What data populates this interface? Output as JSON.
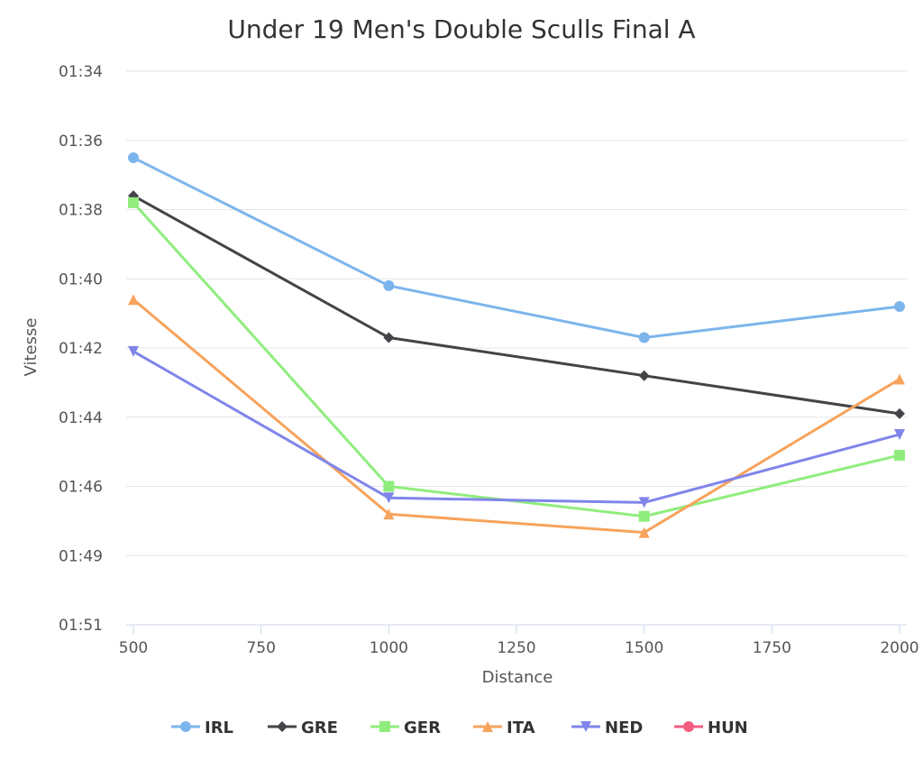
{
  "chart_data": {
    "type": "line",
    "title": "Under 19 Men's Double Sculls Final A",
    "xlabel": "Distance",
    "ylabel": "Vitesse",
    "x_ticks": [
      500,
      750,
      1000,
      1250,
      1500,
      1750,
      2000
    ],
    "xlim": [
      500,
      2000
    ],
    "y_ticks": [
      "01:34",
      "01:36",
      "01:38",
      "01:40",
      "01:42",
      "01:44",
      "01:46",
      "01:49",
      "01:51"
    ],
    "y_tick_seconds": [
      94,
      96,
      98,
      100,
      102,
      104,
      106,
      109,
      111
    ],
    "y_reversed": true,
    "grid": "horizontal",
    "legend_position": "bottom",
    "x": [
      500,
      1000,
      1500,
      2000
    ],
    "series": [
      {
        "name": "IRL",
        "color": "#7cb5ec",
        "marker": "circle",
        "values_seconds": [
          96.5,
          100.2,
          101.7,
          100.8
        ]
      },
      {
        "name": "GRE",
        "color": "#434348",
        "marker": "diamond",
        "values_seconds": [
          97.6,
          101.7,
          102.8,
          103.9
        ]
      },
      {
        "name": "GER",
        "color": "#90ed7d",
        "marker": "square",
        "values_seconds": [
          97.8,
          106.0,
          107.3,
          105.1
        ]
      },
      {
        "name": "ITA",
        "color": "#f7a35c",
        "marker": "triangle",
        "values_seconds": [
          100.6,
          107.2,
          108.0,
          102.9
        ]
      },
      {
        "name": "NED",
        "color": "#8085e9",
        "marker": "triangle-down",
        "values_seconds": [
          102.1,
          106.5,
          106.7,
          104.5
        ]
      },
      {
        "name": "HUN",
        "color": "#f15c80",
        "marker": "circle",
        "values_seconds": []
      }
    ]
  }
}
